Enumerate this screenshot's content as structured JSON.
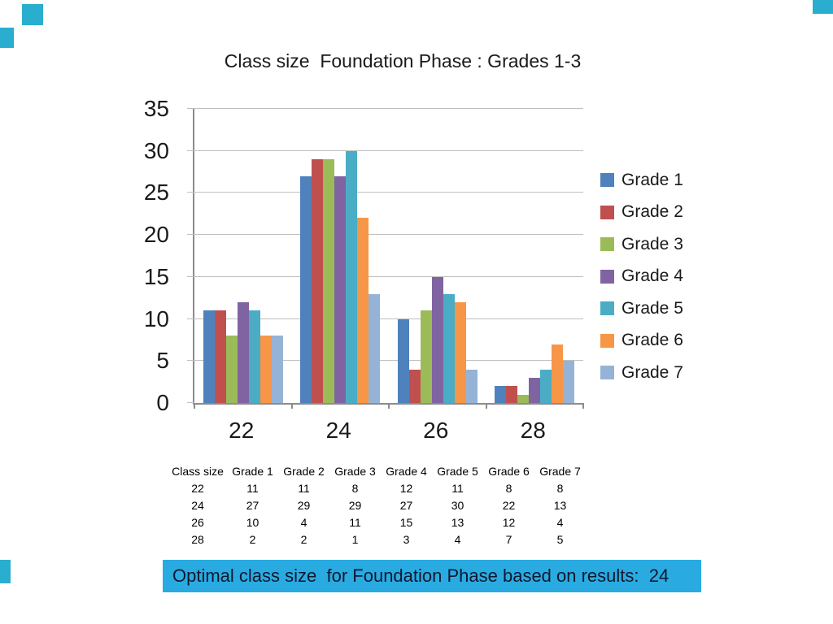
{
  "slide": {
    "title": "Class size  Foundation Phase : Grades 1-3",
    "accent_color": "#2aaecf",
    "banner": {
      "text": "Optimal class size  for Foundation Phase based on results:  24",
      "bg_color": "#29abe2",
      "text_color": "#10182e"
    }
  },
  "chart_data": {
    "type": "bar",
    "title": "Class size  Foundation Phase : Grades 1-3",
    "xlabel": "",
    "ylabel": "",
    "categories": [
      "22",
      "24",
      "26",
      "28"
    ],
    "series": [
      {
        "name": "Grade 1",
        "color": "#4F81BD",
        "values": [
          11,
          27,
          10,
          2
        ]
      },
      {
        "name": "Grade 2",
        "color": "#C0504D",
        "values": [
          11,
          29,
          4,
          2
        ]
      },
      {
        "name": "Grade 3",
        "color": "#9BBB59",
        "values": [
          8,
          29,
          11,
          1
        ]
      },
      {
        "name": "Grade 4",
        "color": "#8064A2",
        "values": [
          12,
          27,
          15,
          3
        ]
      },
      {
        "name": "Grade 5",
        "color": "#4BACC6",
        "values": [
          11,
          30,
          13,
          4
        ]
      },
      {
        "name": "Grade 6",
        "color": "#F79646",
        "values": [
          8,
          22,
          12,
          7
        ]
      },
      {
        "name": "Grade 7",
        "color": "#95B3D7",
        "values": [
          8,
          13,
          4,
          5
        ]
      }
    ],
    "ylim": [
      0,
      35
    ],
    "ytick_step": 5,
    "grid": true,
    "legend_position": "right",
    "gridline_color": "#bfbfbf",
    "axis_color": "#8c8c8c"
  },
  "table": {
    "headers": [
      "Class size",
      "Grade 1",
      "Grade 2",
      "Grade 3",
      "Grade 4",
      "Grade 5",
      "Grade 6",
      "Grade 7"
    ],
    "rows": [
      [
        "22",
        "11",
        "11",
        "8",
        "12",
        "11",
        "8",
        "8"
      ],
      [
        "24",
        "27",
        "29",
        "29",
        "27",
        "30",
        "22",
        "13"
      ],
      [
        "26",
        "10",
        "4",
        "11",
        "15",
        "13",
        "12",
        "4"
      ],
      [
        "28",
        "2",
        "2",
        "1",
        "3",
        "4",
        "7",
        "5"
      ]
    ]
  }
}
